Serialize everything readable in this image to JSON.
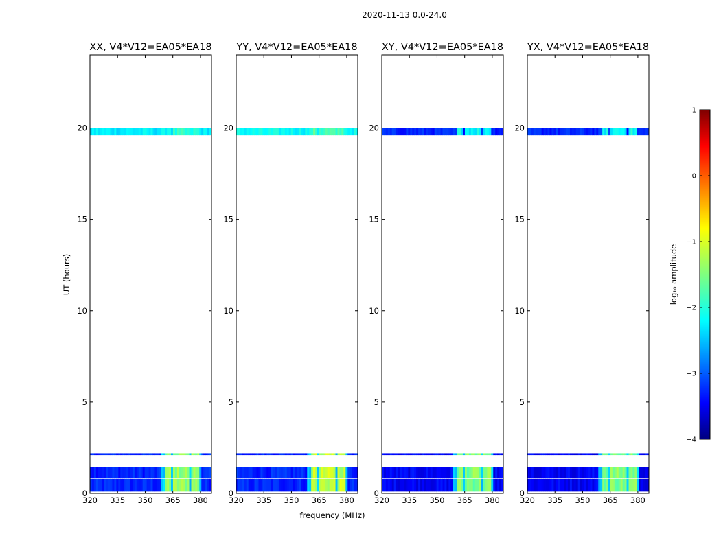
{
  "chart_data": {
    "type": "heatmap",
    "suptitle": "2020-11-13 0.0-24.0",
    "xlabel": "frequency (MHz)",
    "ylabel": "UT (hours)",
    "xlim": [
      320,
      386
    ],
    "ylim": [
      0,
      24
    ],
    "xticks": [
      320,
      335,
      350,
      365,
      380
    ],
    "yticks": [
      0,
      5,
      10,
      15,
      20
    ],
    "time_blocks_hours": [
      [
        0.1,
        0.8
      ],
      [
        0.85,
        1.45
      ],
      [
        2.1,
        2.2
      ],
      [
        19.6,
        20.0
      ]
    ],
    "rfi_bands_mhz": [
      [
        360.5,
        364.5
      ],
      [
        365.5,
        369
      ],
      [
        370,
        374
      ],
      [
        375,
        379.5
      ]
    ],
    "panels": [
      {
        "title": "XX, V4*V12=EA05*EA18",
        "pol": "XX",
        "base_log_amp": -3.2,
        "top_block_log_amp": -2.2,
        "rfi_log_amp": -1.4
      },
      {
        "title": "YY, V4*V12=EA05*EA18",
        "pol": "YY",
        "base_log_amp": -3.2,
        "top_block_log_amp": -2.1,
        "rfi_log_amp": -1.2
      },
      {
        "title": "XY, V4*V12=EA05*EA18",
        "pol": "XY",
        "base_log_amp": -3.4,
        "top_block_log_amp": -3.2,
        "rfi_log_amp": -1.5
      },
      {
        "title": "YX, V4*V12=EA05*EA18",
        "pol": "YX",
        "base_log_amp": -3.4,
        "top_block_log_amp": -3.2,
        "rfi_log_amp": -1.5
      }
    ],
    "colorbar": {
      "label": "log₁₀ amplitude",
      "range": [
        -4,
        1
      ],
      "ticks": [
        1,
        0,
        -1,
        -2,
        -3,
        -4
      ],
      "tick_labels": [
        "1",
        "0",
        "−1",
        "−2",
        "−3",
        "−4"
      ],
      "colormap": "jet"
    }
  }
}
